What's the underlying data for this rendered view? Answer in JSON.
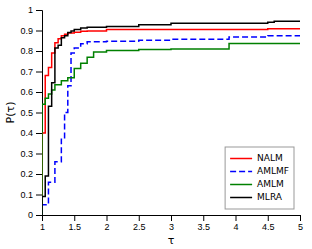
{
  "chart_data": {
    "type": "line",
    "xlabel": "τ",
    "ylabel": "P(τ)",
    "xlim": [
      1,
      5
    ],
    "ylim": [
      0,
      1.0
    ],
    "xticks": [
      1.0,
      1.5,
      2.0,
      2.5,
      3.0,
      3.5,
      4.0,
      4.5,
      5.0
    ],
    "yticks": [
      0.0,
      0.1,
      0.2,
      0.3,
      0.4,
      0.5,
      0.6,
      0.7,
      0.8,
      0.9,
      1.0
    ],
    "grid": false,
    "legend": "lower right",
    "series": [
      {
        "name": "NALM",
        "color": "red",
        "line_style": "solid",
        "x": [
          1.0,
          1.0,
          1.05,
          1.05,
          1.1,
          1.1,
          1.15,
          1.15,
          1.2,
          1.2,
          1.25,
          1.25,
          1.3,
          1.3,
          1.35,
          1.35,
          1.4,
          1.4,
          1.5,
          1.5,
          1.6,
          1.6,
          1.7,
          1.7,
          2.0,
          2.0,
          4.5,
          4.5,
          5.0
        ],
        "values": [
          0.0,
          0.4,
          0.4,
          0.68,
          0.68,
          0.72,
          0.72,
          0.79,
          0.79,
          0.84,
          0.84,
          0.86,
          0.86,
          0.875,
          0.875,
          0.882,
          0.882,
          0.888,
          0.888,
          0.892,
          0.892,
          0.896,
          0.896,
          0.898,
          0.898,
          0.905,
          0.905,
          0.908,
          0.908
        ]
      },
      {
        "name": "AMLMF",
        "color": "blue",
        "line_style": "dashed",
        "x": [
          1.0,
          1.0,
          1.1,
          1.1,
          1.2,
          1.2,
          1.3,
          1.3,
          1.35,
          1.35,
          1.4,
          1.4,
          1.45,
          1.45,
          1.5,
          1.5,
          1.6,
          1.6,
          1.7,
          1.7,
          2.0,
          2.0,
          2.5,
          2.5,
          3.0,
          3.0,
          3.9,
          3.9,
          4.5,
          4.5,
          5.0
        ],
        "values": [
          0.0,
          0.05,
          0.05,
          0.16,
          0.16,
          0.26,
          0.26,
          0.37,
          0.37,
          0.5,
          0.5,
          0.63,
          0.63,
          0.79,
          0.79,
          0.815,
          0.815,
          0.835,
          0.835,
          0.845,
          0.845,
          0.848,
          0.848,
          0.853,
          0.853,
          0.857,
          0.857,
          0.868,
          0.868,
          0.875,
          0.875
        ]
      },
      {
        "name": "AMLM",
        "color": "green",
        "line_style": "solid",
        "x": [
          1.0,
          1.0,
          1.05,
          1.05,
          1.1,
          1.1,
          1.15,
          1.15,
          1.2,
          1.2,
          1.3,
          1.3,
          1.4,
          1.4,
          1.5,
          1.5,
          1.6,
          1.6,
          1.7,
          1.7,
          1.8,
          1.8,
          2.0,
          2.0,
          2.5,
          2.5,
          3.0,
          3.0,
          3.9,
          3.9,
          5.0
        ],
        "values": [
          0.0,
          0.54,
          0.54,
          0.57,
          0.57,
          0.59,
          0.59,
          0.61,
          0.61,
          0.635,
          0.635,
          0.655,
          0.655,
          0.67,
          0.67,
          0.715,
          0.715,
          0.74,
          0.74,
          0.77,
          0.77,
          0.795,
          0.795,
          0.803,
          0.803,
          0.807,
          0.807,
          0.81,
          0.81,
          0.836,
          0.836
        ]
      },
      {
        "name": "MLRA",
        "color": "black",
        "line_style": "solid",
        "x": [
          1.0,
          1.0,
          1.05,
          1.05,
          1.1,
          1.1,
          1.15,
          1.15,
          1.2,
          1.2,
          1.25,
          1.25,
          1.3,
          1.3,
          1.35,
          1.35,
          1.4,
          1.4,
          1.45,
          1.45,
          1.5,
          1.5,
          1.6,
          1.6,
          1.7,
          1.7,
          2.0,
          2.0,
          2.5,
          2.5,
          3.0,
          3.0,
          4.5,
          4.5,
          4.6,
          4.6,
          5.0
        ],
        "values": [
          0.0,
          0.09,
          0.09,
          0.19,
          0.19,
          0.53,
          0.53,
          0.645,
          0.645,
          0.815,
          0.815,
          0.828,
          0.828,
          0.865,
          0.865,
          0.875,
          0.875,
          0.89,
          0.89,
          0.898,
          0.898,
          0.905,
          0.905,
          0.912,
          0.912,
          0.916,
          0.916,
          0.92,
          0.92,
          0.928,
          0.928,
          0.935,
          0.935,
          0.94,
          0.94,
          0.945,
          0.945
        ]
      }
    ]
  }
}
